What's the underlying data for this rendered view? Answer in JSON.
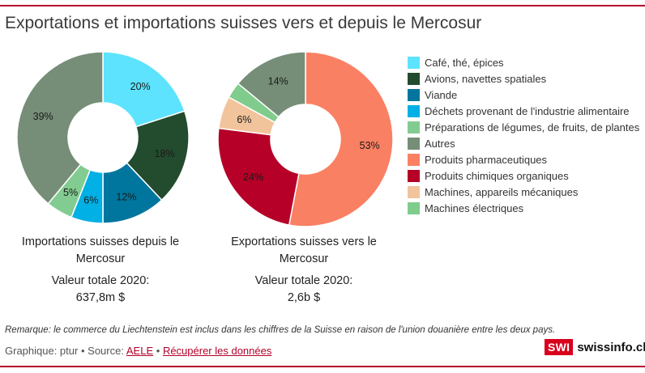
{
  "title": "Exportations et importations suisses vers et depuis le Mercosur",
  "colors": {
    "accent": "#b5002a",
    "label_text": "#1a1a1a"
  },
  "legend": [
    {
      "label": "Café, thé, épices",
      "color": "#5de3fd"
    },
    {
      "label": "Avions, navettes spatiales",
      "color": "#234b2e"
    },
    {
      "label": "Viande",
      "color": "#00769e"
    },
    {
      "label": "Déchets provenant de l'industrie alimentaire",
      "color": "#01b0e5"
    },
    {
      "label": "Préparations de légumes, de fruits, de plantes",
      "color": "#83cc91"
    },
    {
      "label": "Autres",
      "color": "#768e77"
    },
    {
      "label": "Produits pharmaceutiques",
      "color": "#fa8063"
    },
    {
      "label": "Produits chimiques organiques",
      "color": "#b60028"
    },
    {
      "label": "Machines, appareils mécaniques",
      "color": "#f2c49c"
    },
    {
      "label": "Machines électriques",
      "color": "#80cc8c"
    }
  ],
  "chart_data": [
    {
      "type": "pie",
      "donut": true,
      "title": "Importations suisses depuis le Mercosur",
      "total_label": "Valeur totale 2020:",
      "total_value": "637,8m $",
      "slices": [
        {
          "category": "Café, thé, épices",
          "value": 20,
          "label": "20%",
          "color": "#5de3fd"
        },
        {
          "category": "Avions, navettes spatiales",
          "value": 18,
          "label": "18%",
          "color": "#234b2e"
        },
        {
          "category": "Viande",
          "value": 12,
          "label": "12%",
          "color": "#00769e"
        },
        {
          "category": "Déchets provenant de l'industrie alimentaire",
          "value": 6,
          "label": "6%",
          "color": "#01b0e5"
        },
        {
          "category": "Préparations de légumes, de fruits, de plantes",
          "value": 5,
          "label": "5%",
          "color": "#83cc91"
        },
        {
          "category": "Autres",
          "value": 39,
          "label": "39%",
          "color": "#768e77"
        }
      ]
    },
    {
      "type": "pie",
      "donut": true,
      "title": "Exportations suisses vers le Mercosur",
      "total_label": "Valeur totale 2020:",
      "total_value": "2,6b $",
      "slices": [
        {
          "category": "Produits pharmaceutiques",
          "value": 53,
          "label": "53%",
          "color": "#fa8063"
        },
        {
          "category": "Produits chimiques organiques",
          "value": 24,
          "label": "24%",
          "color": "#b60028"
        },
        {
          "category": "Machines, appareils mécaniques",
          "value": 6,
          "label": "6%",
          "color": "#f2c49c"
        },
        {
          "category": "Machines électriques",
          "value": 3,
          "label": "",
          "color": "#80cc8c"
        },
        {
          "category": "Autres",
          "value": 14,
          "label": "14%",
          "color": "#768e77"
        }
      ]
    }
  ],
  "footer": {
    "note": "Remarque: le commerce du Liechtenstein est inclus dans les chiffres de la Suisse en raison de l'union douanière entre les deux pays.",
    "graphic_credit": "Graphique: ptur",
    "separator": "•",
    "source_prefix": "Source:",
    "source_link": "AELE",
    "download_link": "Récupérer les données",
    "logo_box": "SWI",
    "logo_text": "swissinfo.ch"
  }
}
